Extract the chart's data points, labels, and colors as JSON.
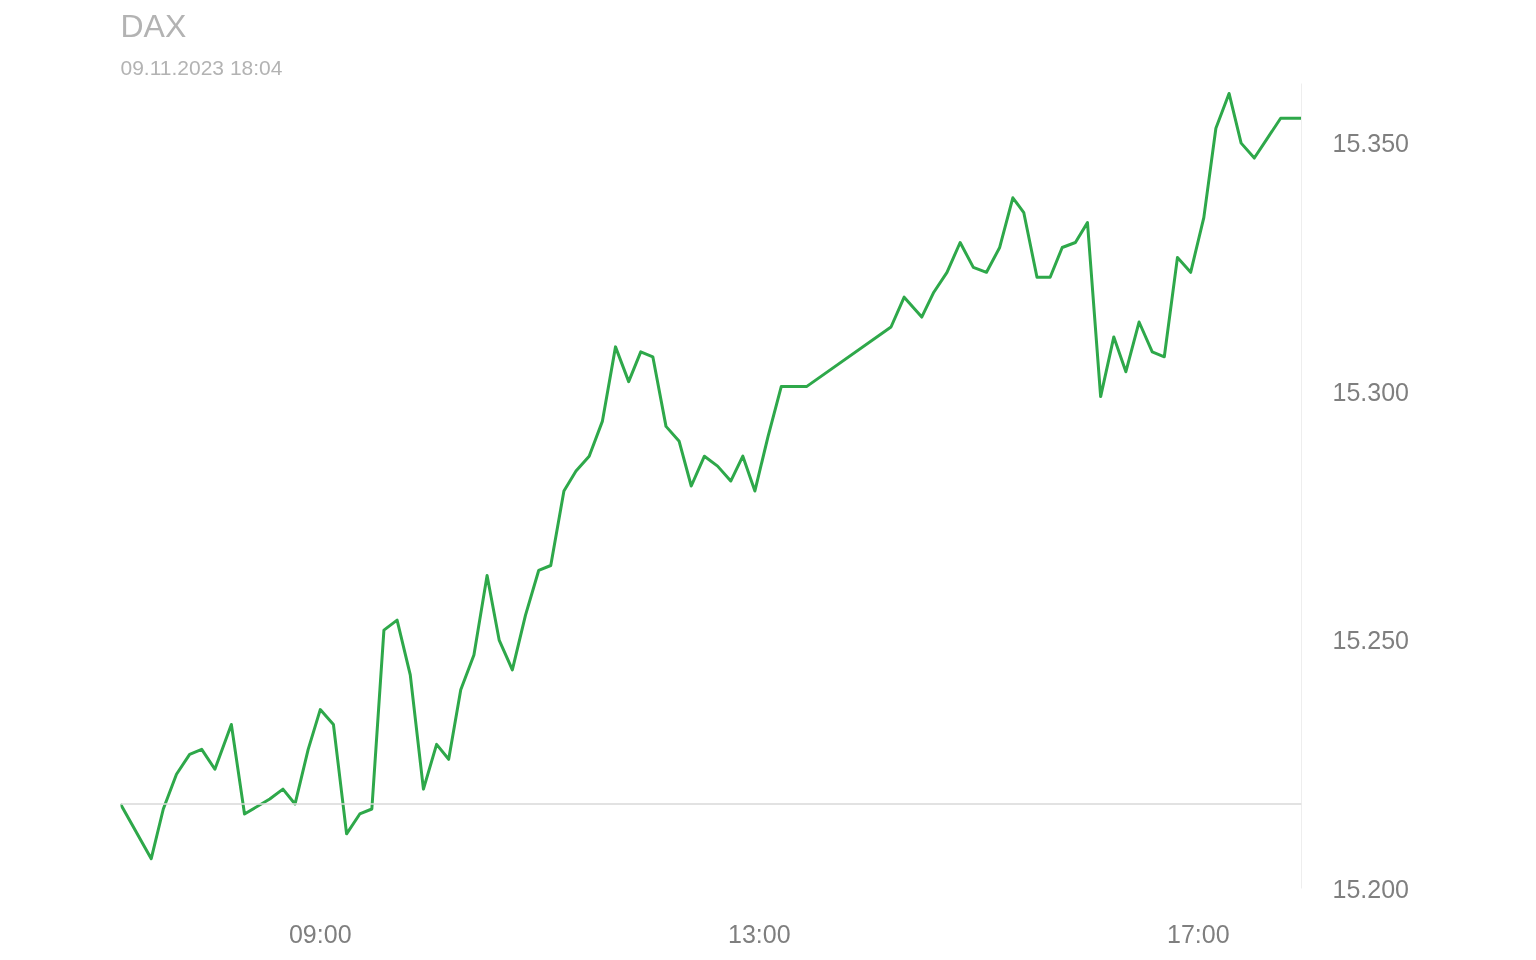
{
  "chart_data": {
    "type": "line",
    "title": "DAX",
    "subtitle": "09.11.2023 18:04",
    "x": [
      7.18,
      7.46,
      7.57,
      7.69,
      7.81,
      7.92,
      8.04,
      8.19,
      8.31,
      8.54,
      8.66,
      8.77,
      8.89,
      9.0,
      9.12,
      9.24,
      9.36,
      9.47,
      9.58,
      9.7,
      9.82,
      9.94,
      10.06,
      10.17,
      10.28,
      10.4,
      10.52,
      10.63,
      10.75,
      10.87,
      10.99,
      11.1,
      11.22,
      11.33,
      11.45,
      11.57,
      11.69,
      11.81,
      11.92,
      12.03,
      12.15,
      12.27,
      12.38,
      12.5,
      12.62,
      12.74,
      12.85,
      12.96,
      13.08,
      13.2,
      13.31,
      13.43,
      14.2,
      14.32,
      14.48,
      14.59,
      14.71,
      14.83,
      14.95,
      15.07,
      15.19,
      15.31,
      15.41,
      15.53,
      15.65,
      15.76,
      15.88,
      15.99,
      16.11,
      16.23,
      16.34,
      16.46,
      16.58,
      16.69,
      16.81,
      16.93,
      17.05,
      17.16,
      17.28,
      17.39,
      17.51,
      17.63,
      17.75,
      17.94
    ],
    "series": [
      {
        "color": "#2ea84a",
        "values": [
          15217,
          15206,
          15216,
          15223,
          15227,
          15228,
          15224,
          15233,
          15215,
          15218,
          15220,
          15217,
          15228,
          15236,
          15233,
          15211,
          15215,
          15216,
          15252,
          15254,
          15243,
          15220,
          15229,
          15226,
          15240,
          15247,
          15263,
          15250,
          15244,
          15255,
          15264,
          15265,
          15280,
          15284,
          15287,
          15294,
          15309,
          15302,
          15308,
          15307,
          15293,
          15290,
          15281,
          15287,
          15285,
          15282,
          15287,
          15280,
          15291,
          15301,
          15301,
          15301,
          15313,
          15319,
          15315,
          15320,
          15324,
          15330,
          15325,
          15324,
          15329,
          15339,
          15336,
          15323,
          15323,
          15329,
          15330,
          15334,
          15299,
          15311,
          15304,
          15314,
          15308,
          15307,
          15327,
          15324,
          15335,
          15353,
          15360,
          15350,
          15347,
          15351,
          15355,
          15355
        ]
      }
    ],
    "xlim": [
      7.18,
      17.94
    ],
    "ylim": [
      15200,
      15362
    ],
    "xticks": [
      {
        "value": 9,
        "label": "09:00"
      },
      {
        "value": 13,
        "label": "13:00"
      },
      {
        "value": 17,
        "label": "17:00"
      }
    ],
    "yticks": [
      {
        "value": 15200,
        "label": "15.200"
      },
      {
        "value": 15250,
        "label": "15.250"
      },
      {
        "value": 15300,
        "label": "15.300"
      },
      {
        "value": 15350,
        "label": "15.350"
      }
    ],
    "ref_lines": [
      {
        "axis": "y",
        "value": 15217,
        "color": "#d9d9d9"
      }
    ]
  }
}
